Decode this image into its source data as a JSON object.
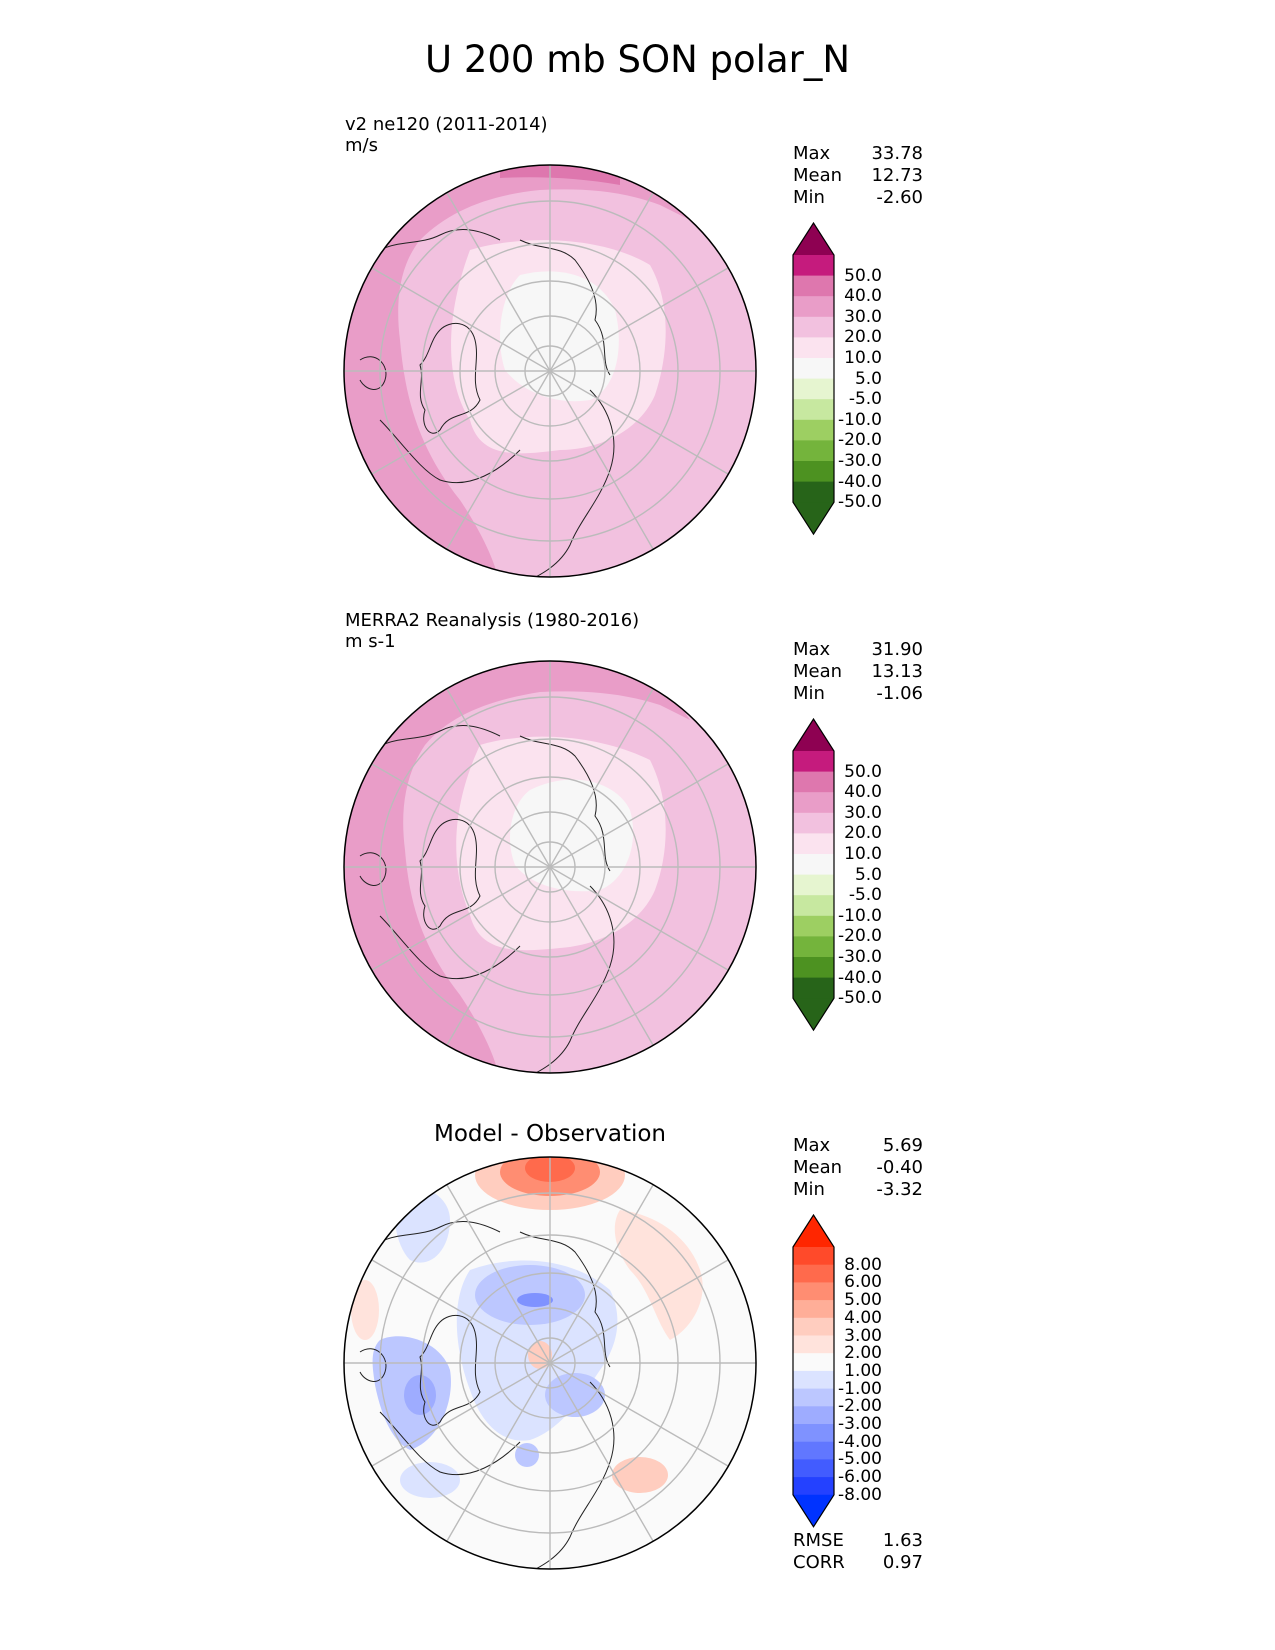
{
  "figure": {
    "title": "U 200 mb SON polar_N"
  },
  "panels": [
    {
      "id": "model",
      "title_line1": "v2 ne120 (2011-2014)",
      "title_line2": "m/s",
      "stats": {
        "max_label": "Max",
        "max": "33.78",
        "mean_label": "Mean",
        "mean": "12.73",
        "min_label": "Min",
        "min": "-2.60"
      },
      "colorbar": [
        "50.0",
        "40.0",
        "30.0",
        "20.0",
        "10.0",
        "5.0",
        "-5.0",
        "-10.0",
        "-20.0",
        "-30.0",
        "-40.0",
        "-50.0"
      ]
    },
    {
      "id": "obs",
      "title_line1": "MERRA2 Reanalysis (1980-2016)",
      "title_line2": "m s-1",
      "stats": {
        "max_label": "Max",
        "max": "31.90",
        "mean_label": "Mean",
        "mean": "13.13",
        "min_label": "Min",
        "min": "-1.06"
      },
      "colorbar": [
        "50.0",
        "40.0",
        "30.0",
        "20.0",
        "10.0",
        "5.0",
        "-5.0",
        "-10.0",
        "-20.0",
        "-30.0",
        "-40.0",
        "-50.0"
      ]
    },
    {
      "id": "diff",
      "title_center": "Model - Observation",
      "stats": {
        "max_label": "Max",
        "max": "5.69",
        "mean_label": "Mean",
        "mean": "-0.40",
        "min_label": "Min",
        "min": "-3.32"
      },
      "colorbar": [
        "8.00",
        "6.00",
        "5.00",
        "4.00",
        "3.00",
        "2.00",
        "1.00",
        "-1.00",
        "-2.00",
        "-3.00",
        "-4.00",
        "-5.00",
        "-6.00",
        "-8.00"
      ],
      "metrics": {
        "rmse_label": "RMSE",
        "rmse": "1.63",
        "corr_label": "CORR",
        "corr": "0.97"
      }
    }
  ],
  "colors": {
    "seq_top": "#8e0152",
    "seq": [
      "#c51b7d",
      "#de77ae",
      "#e99dc8",
      "#f2c1df",
      "#fbe3ef",
      "#f7f7f7",
      "#e6f5d0",
      "#c7e8a0",
      "#9dcf62",
      "#74b43c",
      "#4d9221",
      "#276419"
    ],
    "seq_bottom": "#276419",
    "diff_top": "#ff2600",
    "diff": [
      "#ff4a2a",
      "#ff6a4c",
      "#ff8d72",
      "#ffae98",
      "#ffcdbf",
      "#ffe3dc",
      "#fafafa",
      "#dbe3ff",
      "#bcc7ff",
      "#9eacff",
      "#7f92ff",
      "#6177ff",
      "#425cff",
      "#2441ff"
    ],
    "diff_bottom": "#0033ff"
  },
  "chart_data": [
    {
      "type": "heatmap",
      "projection": "north polar stereographic",
      "title": "v2 ne120 (2011-2014)",
      "units": "m/s",
      "variable": "U 200 mb SON",
      "levels": [
        -50,
        -40,
        -30,
        -20,
        -10,
        -5,
        5,
        10,
        20,
        30,
        40,
        50
      ],
      "max": 33.78,
      "mean": 12.73,
      "min": -2.6
    },
    {
      "type": "heatmap",
      "projection": "north polar stereographic",
      "title": "MERRA2 Reanalysis (1980-2016)",
      "units": "m s-1",
      "variable": "U 200 mb SON",
      "levels": [
        -50,
        -40,
        -30,
        -20,
        -10,
        -5,
        5,
        10,
        20,
        30,
        40,
        50
      ],
      "max": 31.9,
      "mean": 13.13,
      "min": -1.06
    },
    {
      "type": "heatmap",
      "projection": "north polar stereographic",
      "title": "Model - Observation",
      "levels": [
        -8,
        -6,
        -5,
        -4,
        -3,
        -2,
        -1,
        1,
        2,
        3,
        4,
        5,
        6,
        8
      ],
      "max": 5.69,
      "mean": -0.4,
      "min": -3.32,
      "rmse": 1.63,
      "corr": 0.97
    }
  ]
}
